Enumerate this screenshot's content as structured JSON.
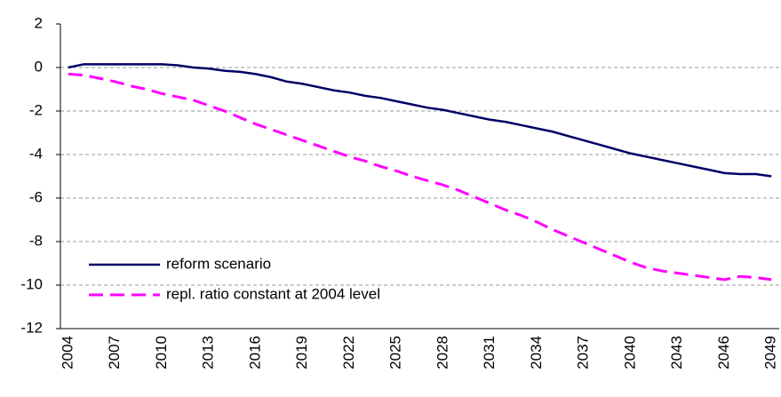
{
  "chart_data": {
    "type": "line",
    "categories": [
      "2004",
      null,
      null,
      "2007",
      null,
      null,
      "2010",
      null,
      null,
      "2013",
      null,
      null,
      "2016",
      null,
      null,
      "2019",
      null,
      null,
      "2022",
      null,
      null,
      "2025",
      null,
      null,
      "2028",
      null,
      null,
      "2031",
      null,
      null,
      "2034",
      null,
      null,
      "2037",
      null,
      null,
      "2040",
      null,
      null,
      "2043",
      null,
      null,
      "2046",
      null,
      null,
      "2049"
    ],
    "series": [
      {
        "name": "reform scenario",
        "color": "#000066",
        "dash": false,
        "values": [
          0,
          0.15,
          0.15,
          0.15,
          0.15,
          0.15,
          0.15,
          0.1,
          0,
          -0.05,
          -0.15,
          -0.2,
          -0.3,
          -0.45,
          -0.65,
          -0.75,
          -0.9,
          -1.05,
          -1.15,
          -1.3,
          -1.4,
          -1.55,
          -1.7,
          -1.85,
          -1.95,
          -2.1,
          -2.25,
          -2.4,
          -2.5,
          -2.65,
          -2.8,
          -2.95,
          -3.15,
          -3.35,
          -3.55,
          -3.75,
          -3.95,
          -4.1,
          -4.25,
          -4.4,
          -4.55,
          -4.7,
          -4.85,
          -4.9,
          -4.9,
          -5.0
        ]
      },
      {
        "name": "repl. ratio constant at 2004 level",
        "color": "#ff00ff",
        "dash": true,
        "values": [
          -0.3,
          -0.35,
          -0.5,
          -0.65,
          -0.85,
          -1.0,
          -1.2,
          -1.35,
          -1.5,
          -1.75,
          -2.0,
          -2.3,
          -2.6,
          -2.85,
          -3.1,
          -3.35,
          -3.6,
          -3.85,
          -4.1,
          -4.3,
          -4.55,
          -4.75,
          -5.0,
          -5.2,
          -5.4,
          -5.65,
          -5.95,
          -6.25,
          -6.55,
          -6.8,
          -7.1,
          -7.45,
          -7.75,
          -8.05,
          -8.35,
          -8.65,
          -8.95,
          -9.2,
          -9.35,
          -9.45,
          -9.55,
          -9.65,
          -9.75,
          -9.6,
          -9.65,
          -9.75
        ]
      }
    ],
    "ylim": [
      -12,
      2
    ],
    "yticks": [
      -12,
      -10,
      -8,
      -6,
      -4,
      -2,
      0,
      2
    ],
    "grid": true,
    "legend": "lower-left"
  }
}
